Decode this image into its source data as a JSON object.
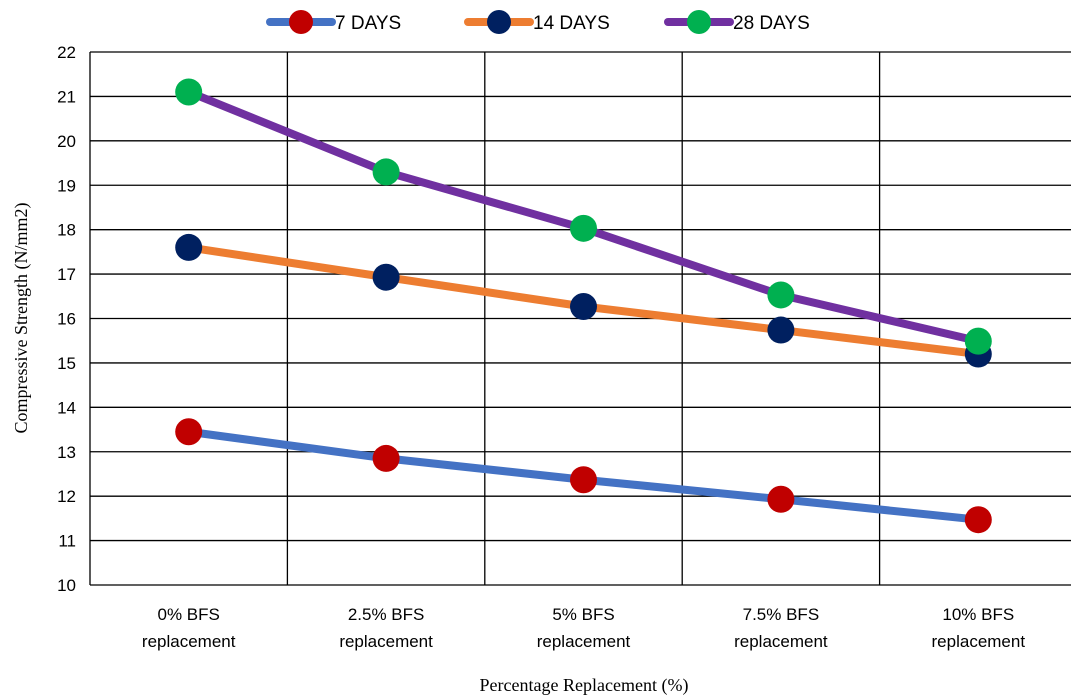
{
  "chart_data": {
    "type": "line",
    "title": "",
    "xlabel": "Percentage Replacement (%)",
    "ylabel": "Compressive Strength (N/mm2)",
    "ylim": [
      10,
      22
    ],
    "yticks": [
      "10",
      "11",
      "12",
      "13",
      "14",
      "15",
      "16",
      "17",
      "18",
      "19",
      "20",
      "21",
      "22"
    ],
    "grid": true,
    "legend_position": "top",
    "categories": [
      [
        "0% BFS",
        "replacement"
      ],
      [
        "2.5% BFS",
        "replacement"
      ],
      [
        "5% BFS",
        "replacement"
      ],
      [
        "7.5% BFS",
        "replacement"
      ],
      [
        "10% BFS",
        "replacement"
      ]
    ],
    "series": [
      {
        "name": "7 DAYS",
        "values": [
          13.45,
          12.85,
          12.37,
          11.93,
          11.47
        ],
        "line_color": "#4472C4",
        "marker_color": "#C00000"
      },
      {
        "name": "14 DAYS",
        "values": [
          17.6,
          16.93,
          16.27,
          15.74,
          15.2
        ],
        "line_color": "#ED7D31",
        "marker_color": "#002060"
      },
      {
        "name": "28 DAYS",
        "values": [
          21.1,
          19.3,
          18.03,
          16.53,
          15.49
        ],
        "line_color": "#7030A0",
        "marker_color": "#00B050"
      }
    ]
  }
}
